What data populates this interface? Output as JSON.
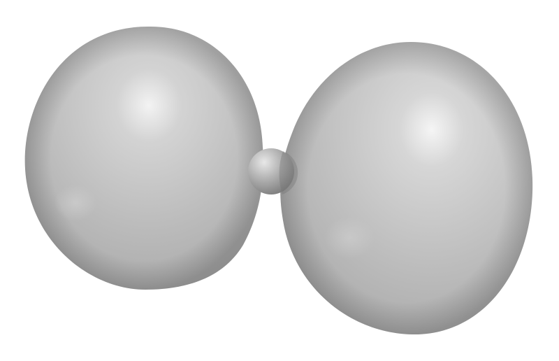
{
  "colors": {
    "background": "#ffffff",
    "lobe_base": "#b9b9b9",
    "lobe_highlight": "#f4f4f4",
    "lobe_shadow": "#8f8f8f",
    "nucleus_base": "#a9a9a9",
    "nucleus_highlight": "#e6e6e6"
  },
  "objects": [
    {
      "name": "left-lobe",
      "kind": "lobe"
    },
    {
      "name": "nucleus",
      "kind": "sphere"
    },
    {
      "name": "right-lobe",
      "kind": "lobe"
    }
  ]
}
